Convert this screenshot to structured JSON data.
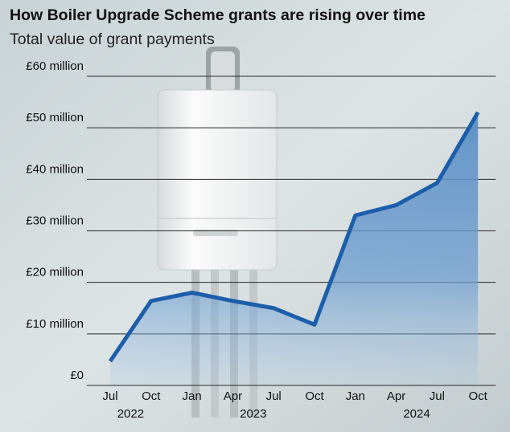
{
  "chart_data": {
    "type": "area",
    "title": "How Boiler Upgrade Scheme grants are rising over time",
    "subtitle": "Total value of grant payments",
    "categories": [
      "Jul",
      "Oct",
      "Jan",
      "Apr",
      "Jul",
      "Oct",
      "Jan",
      "Apr",
      "Jul",
      "Oct"
    ],
    "year_labels": [
      "2022",
      "2023",
      "2024"
    ],
    "series": [
      {
        "name": "Total value of grant payments",
        "color": "#1d5eab",
        "values": [
          4.7,
          16.4,
          18,
          16.4,
          15,
          11.8,
          33,
          35,
          39.3,
          53
        ]
      }
    ],
    "ylim": [
      0,
      60
    ],
    "yticks": [
      {
        "value": 0,
        "label": "£0"
      },
      {
        "value": 10,
        "label": "£10 million"
      },
      {
        "value": 20,
        "label": "£20 million"
      },
      {
        "value": 30,
        "label": "£30 million"
      },
      {
        "value": 40,
        "label": "£40 million"
      },
      {
        "value": 50,
        "label": "£50 million"
      },
      {
        "value": 60,
        "label": "£60 million"
      }
    ],
    "grid": true
  }
}
